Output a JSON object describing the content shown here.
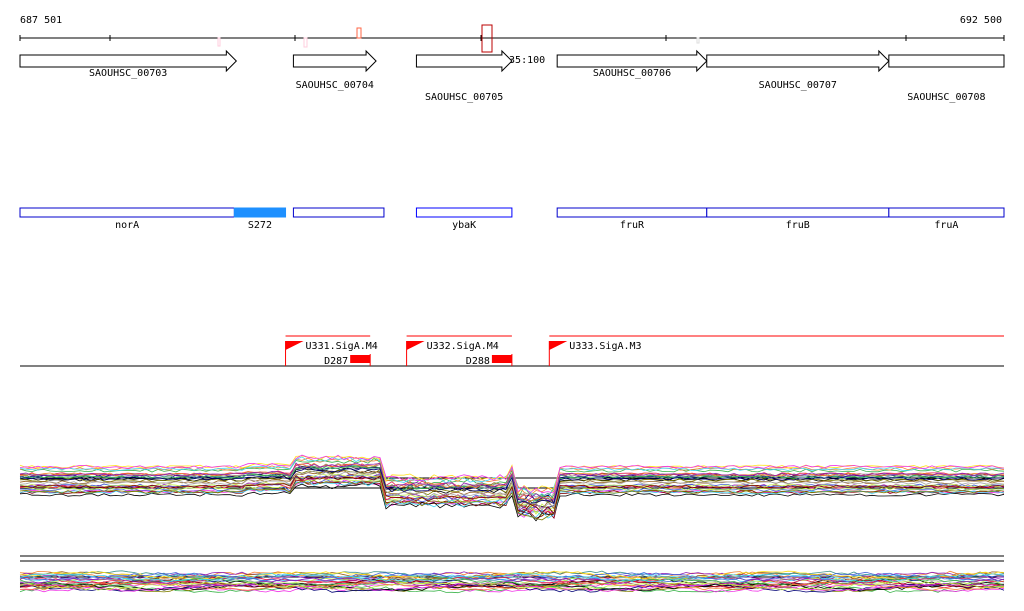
{
  "ruler": {
    "start_label": "687 501",
    "end_label": "692 500",
    "start": 687501,
    "end": 692500
  },
  "marker_label": "T635:100",
  "genes": [
    {
      "name": "SAOUHSC_00703",
      "start": 687501,
      "end": 688600,
      "arrow": true
    },
    {
      "name": "SAOUHSC_00704",
      "start": 688890,
      "end": 689310,
      "arrow": true
    },
    {
      "name": "SAOUHSC_00705",
      "start": 689515,
      "end": 690000,
      "arrow": true
    },
    {
      "name": "SAOUHSC_00706",
      "start": 690230,
      "end": 690990,
      "arrow": true
    },
    {
      "name": "SAOUHSC_00707",
      "start": 690990,
      "end": 691915,
      "arrow": true
    },
    {
      "name": "SAOUHSC_00708",
      "start": 691915,
      "end": 692500,
      "arrow": false
    }
  ],
  "annotations": [
    {
      "name": "norA",
      "start": 687501,
      "end": 688590,
      "fill": "#ffffff",
      "stroke": "#0000cc"
    },
    {
      "name": "S272",
      "start": 688590,
      "end": 688850,
      "fill": "#1e90ff",
      "stroke": "#1e90ff"
    },
    {
      "name": "",
      "start": 688890,
      "end": 689350,
      "fill": "#ffffff",
      "stroke": "#0000cc"
    },
    {
      "name": "ybaK",
      "start": 689515,
      "end": 690000,
      "fill": "#ffffff",
      "stroke": "#0000ff"
    },
    {
      "name": "fruR",
      "start": 690230,
      "end": 690990,
      "fill": "#ffffff",
      "stroke": "#0000cc"
    },
    {
      "name": "fruB",
      "start": 690990,
      "end": 691915,
      "fill": "#ffffff",
      "stroke": "#0000cc"
    },
    {
      "name": "fruA",
      "start": 691915,
      "end": 692500,
      "fill": "#ffffff",
      "stroke": "#0000cc"
    }
  ],
  "promoters": [
    {
      "name": "U331.SigA.M4",
      "sub": "D287",
      "start": 688850,
      "end": 689280
    },
    {
      "name": "U332.SigA.M4",
      "sub": "D288",
      "start": 689465,
      "end": 690000
    },
    {
      "name": "U333.SigA.M3",
      "sub": "",
      "start": 690190,
      "end": 692500
    }
  ],
  "colors": {
    "accent_red": "#ff0000",
    "blue": "#1e90ff"
  }
}
